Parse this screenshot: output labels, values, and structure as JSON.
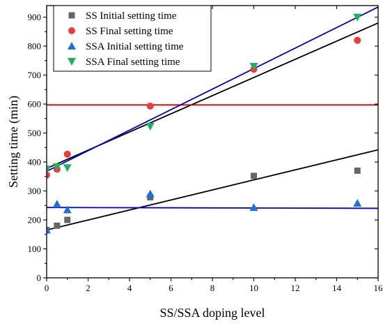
{
  "chart_data": {
    "type": "scatter",
    "xlabel": "SS/SSA doping level",
    "ylabel": "Setting time (min)",
    "xlim": [
      0,
      16
    ],
    "ylim": [
      0,
      940
    ],
    "xticks": [
      0,
      2,
      4,
      6,
      8,
      10,
      12,
      14,
      16
    ],
    "yticks": [
      0,
      100,
      200,
      300,
      400,
      500,
      600,
      700,
      800,
      900
    ],
    "grid": false,
    "legend_position": "top-left",
    "series": [
      {
        "name": "SS Initial setting time",
        "marker": "square",
        "color": "#666666",
        "x": [
          0,
          0.5,
          1,
          5,
          10,
          15
        ],
        "y": [
          165,
          180,
          200,
          278,
          352,
          370
        ]
      },
      {
        "name": "SS Final setting time",
        "marker": "circle",
        "color": "#ee3a3a",
        "x": [
          0,
          0.5,
          1,
          5,
          10,
          15
        ],
        "y": [
          355,
          375,
          427,
          593,
          720,
          820
        ]
      },
      {
        "name": "SSA Initial setting time",
        "marker": "triangle-up",
        "color": "#1e6fe0",
        "x": [
          0,
          0.5,
          1,
          5,
          10,
          15
        ],
        "y": [
          165,
          255,
          235,
          290,
          243,
          258
        ]
      },
      {
        "name": "SSA Final setting time",
        "marker": "triangle-down",
        "color": "#20b060",
        "x": [
          0,
          0.5,
          1,
          5,
          10,
          15
        ],
        "y": [
          375,
          383,
          380,
          523,
          730,
          900
        ]
      }
    ],
    "fit_lines": [
      {
        "color": "#000000",
        "x": [
          0,
          16
        ],
        "y": [
          165,
          442
        ]
      },
      {
        "color": "#000000",
        "x": [
          0,
          16
        ],
        "y": [
          378,
          880
        ]
      },
      {
        "color": "#0000cc",
        "x": [
          0,
          16
        ],
        "y": [
          243,
          240
        ]
      },
      {
        "color": "#dd0000",
        "x": [
          0,
          16
        ],
        "y": [
          597,
          597
        ]
      },
      {
        "color": "#0000cc",
        "x": [
          0,
          16
        ],
        "y": [
          368,
          935
        ]
      }
    ]
  }
}
